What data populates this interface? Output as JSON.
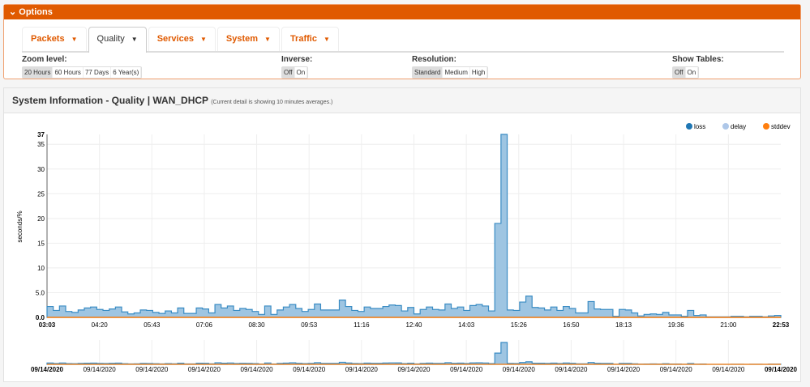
{
  "options": {
    "title": "Options",
    "tabs": [
      {
        "label": "Packets"
      },
      {
        "label": "Quality"
      },
      {
        "label": "Services"
      },
      {
        "label": "System"
      },
      {
        "label": "Traffic"
      }
    ],
    "zoom": {
      "label": "Zoom level:",
      "options": [
        "20 Hours",
        "60 Hours",
        "77 Days",
        "6 Year(s)"
      ]
    },
    "inverse": {
      "label": "Inverse:",
      "options": [
        "Off",
        "On"
      ]
    },
    "resolution": {
      "label": "Resolution:",
      "options": [
        "Standard",
        "Medium",
        "High"
      ]
    },
    "tables": {
      "label": "Show Tables:",
      "options": [
        "Off",
        "On"
      ]
    }
  },
  "panel": {
    "title": "System Information - Quality | WAN_DHCP",
    "note": "(Current detail is showing 10 minutes averages.)"
  },
  "chart_data": {
    "type": "area",
    "ylabel": "seconds/%",
    "ylim": [
      0,
      37
    ],
    "yticks": [
      "0.0",
      "5.0",
      "10",
      "15",
      "20",
      "25",
      "30",
      "35",
      "37"
    ],
    "xticks": [
      "03:03",
      "04:20",
      "05:43",
      "07:06",
      "08:30",
      "09:53",
      "11:16",
      "12:40",
      "14:03",
      "15:26",
      "16:50",
      "18:13",
      "19:36",
      "21:00",
      "22:53"
    ],
    "nav_ticks": [
      "09/14/2020",
      "09/14/2020",
      "09/14/2020",
      "09/14/2020",
      "09/14/2020",
      "09/14/2020",
      "09/14/2020",
      "09/14/2020",
      "09/14/2020",
      "09/14/2020",
      "09/14/2020",
      "09/14/2020",
      "09/14/2020",
      "09/14/2020",
      "09/14/2020"
    ],
    "legend": [
      {
        "name": "loss",
        "color": "#1f77b4"
      },
      {
        "name": "delay",
        "color": "#aec7e8"
      },
      {
        "name": "stddev",
        "color": "#ff7f0e"
      }
    ],
    "series": [
      {
        "name": "delay",
        "values": [
          2.2,
          1.4,
          2.3,
          1.2,
          1.0,
          1.5,
          1.9,
          2.1,
          1.6,
          1.4,
          1.7,
          2.1,
          1.1,
          0.7,
          0.9,
          1.5,
          1.4,
          1.0,
          0.8,
          1.3,
          0.9,
          1.9,
          0.8,
          0.8,
          1.9,
          1.7,
          0.9,
          2.6,
          1.9,
          2.3,
          1.4,
          1.8,
          1.6,
          1.2,
          0.6,
          2.3,
          0.6,
          1.5,
          2.1,
          2.6,
          1.8,
          1.2,
          1.6,
          2.7,
          1.5,
          1.5,
          1.5,
          3.5,
          2.2,
          1.4,
          1.2,
          2.1,
          1.8,
          1.8,
          2.2,
          2.5,
          2.4,
          1.3,
          2.0,
          0.7,
          1.6,
          2.1,
          1.6,
          1.5,
          2.7,
          1.8,
          2.1,
          1.4,
          2.4,
          2.6,
          2.3,
          1.3,
          19,
          37,
          1.5,
          1.4,
          3.1,
          4.3,
          2.0,
          1.9,
          1.5,
          2.1,
          1.4,
          2.2,
          1.8,
          0.9,
          0.9,
          3.2,
          1.7,
          1.6,
          1.6,
          0.2,
          1.6,
          1.5,
          0.9,
          0.3,
          0.6,
          0.7,
          0.6,
          1.0,
          0.5,
          0.5,
          0.2,
          1.4,
          0.4,
          0.5,
          0.1,
          0.1,
          0.1,
          0.1,
          0.2,
          0.2,
          0.1,
          0.2,
          0.2,
          0.1,
          0.3,
          0.4
        ]
      },
      {
        "name": "stddev",
        "values": [
          0
        ]
      }
    ]
  }
}
